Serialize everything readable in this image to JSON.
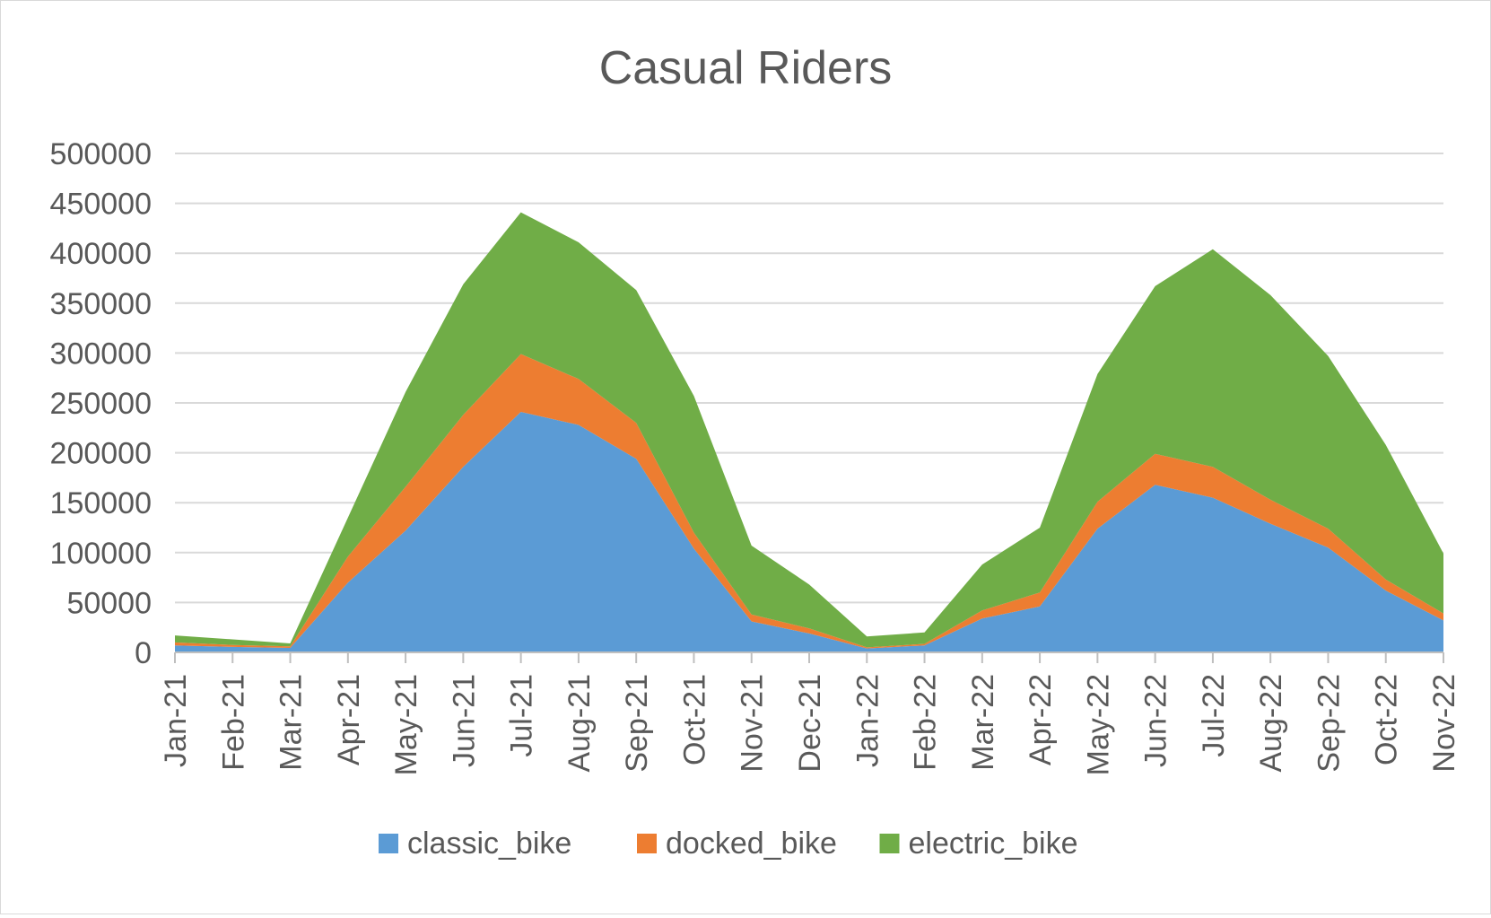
{
  "chart_data": {
    "type": "area",
    "stacked": true,
    "title": "Casual Riders",
    "xlabel": "",
    "ylabel": "",
    "categories": [
      "Jan-21",
      "Feb-21",
      "Mar-21",
      "Apr-21",
      "May-21",
      "Jun-21",
      "Jul-21",
      "Aug-21",
      "Sep-21",
      "Oct-21",
      "Nov-21",
      "Dec-21",
      "Jan-22",
      "Feb-22",
      "Mar-22",
      "Apr-22",
      "May-22",
      "Jun-22",
      "Jul-22",
      "Aug-22",
      "Sep-22",
      "Oct-22",
      "Nov-22"
    ],
    "ylim": [
      0,
      500000
    ],
    "yticks": [
      0,
      50000,
      100000,
      150000,
      200000,
      250000,
      300000,
      350000,
      400000,
      450000,
      500000
    ],
    "grid": true,
    "legend_position": "bottom",
    "series": [
      {
        "name": "classic_bike",
        "color": "#5b9bd5",
        "values": [
          7000,
          5500,
          4500,
          70000,
          122000,
          186000,
          241000,
          228000,
          194000,
          104000,
          31000,
          19000,
          4000,
          7000,
          34000,
          46000,
          124000,
          168000,
          155000,
          129000,
          105000,
          62000,
          32000
        ]
      },
      {
        "name": "docked_bike",
        "color": "#ed7d31",
        "values": [
          3000,
          2000,
          1500,
          26000,
          44000,
          52000,
          58000,
          46000,
          36000,
          16000,
          7000,
          5000,
          1000,
          1500,
          8000,
          14000,
          27000,
          31000,
          31000,
          24000,
          19000,
          11000,
          7000
        ]
      },
      {
        "name": "electric_bike",
        "color": "#70ad47",
        "values": [
          7000,
          5500,
          3000,
          39000,
          95000,
          131000,
          142000,
          137000,
          133000,
          137000,
          69000,
          44000,
          11000,
          11500,
          46000,
          65000,
          128000,
          168000,
          218000,
          205000,
          173000,
          135000,
          60000
        ]
      }
    ]
  }
}
